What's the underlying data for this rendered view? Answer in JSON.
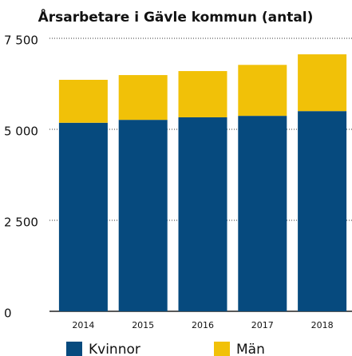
{
  "chart_data": {
    "type": "stacked_bar",
    "title": "Årsarbetare i Gävle kommun (antal)",
    "categories": [
      "2014",
      "2015",
      "2016",
      "2017",
      "2018"
    ],
    "series": [
      {
        "name": "Kvinnor",
        "color": "#064a7e",
        "values": [
          5180,
          5260,
          5330,
          5370,
          5500
        ]
      },
      {
        "name": "Män",
        "color": "#f1c108",
        "values": [
          1180,
          1230,
          1270,
          1400,
          1560
        ]
      }
    ],
    "ylim": [
      0,
      7500
    ],
    "yticks": [
      0,
      {
        "value": 2500,
        "label": "2 500"
      },
      {
        "value": 5000,
        "label": "5 000"
      },
      {
        "value": 7500,
        "label": "7 500"
      }
    ],
    "grid": true
  }
}
